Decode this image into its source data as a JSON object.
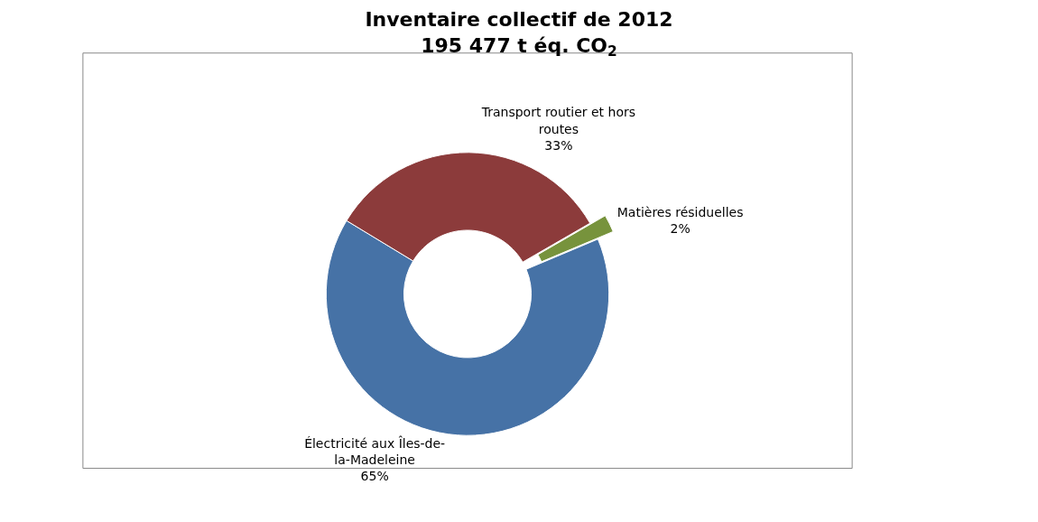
{
  "chart_data": {
    "type": "donut",
    "title": "Inventaire collectif de 2012",
    "subtitle": "195 477 t éq. CO$_{2}$",
    "categories": [
      "Matières résiduelles",
      "Électricité aux Îles-de-la-Madeleine",
      "Transport routier et hors routes"
    ],
    "values": [
      2,
      65,
      33
    ],
    "colors": [
      "#77933c",
      "#4672a6",
      "#8c3b3b"
    ],
    "value_labels": [
      "2%",
      "65%",
      "33%"
    ],
    "legend": false
  }
}
